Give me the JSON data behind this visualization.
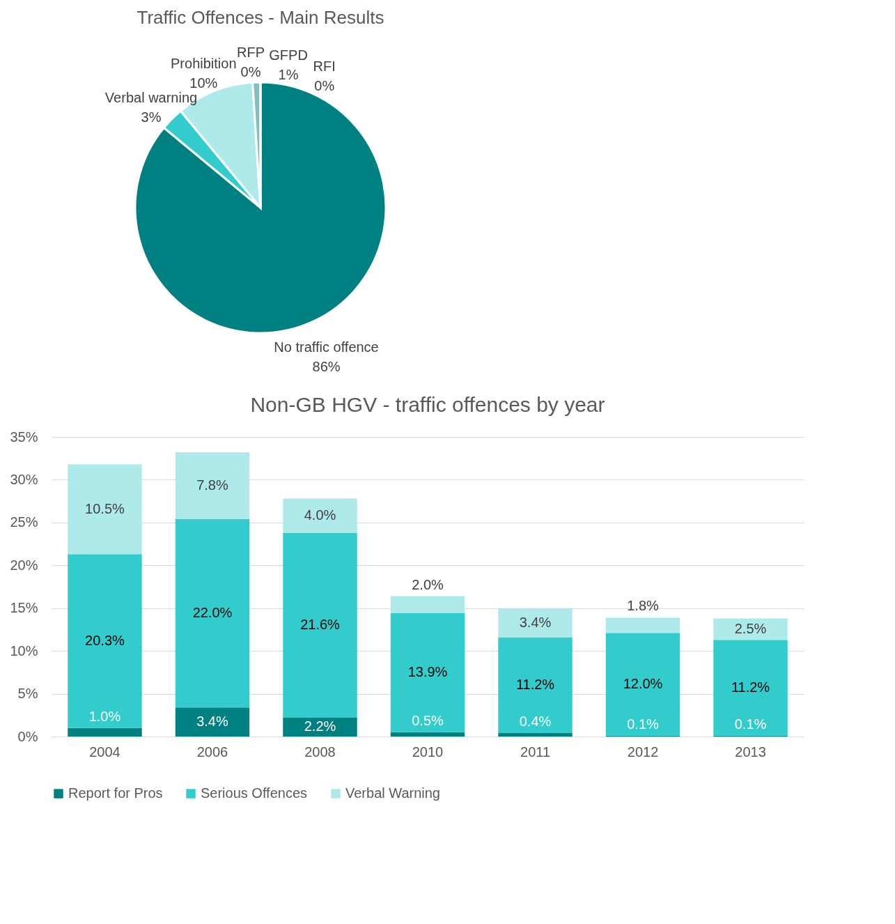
{
  "chart_data": [
    {
      "type": "pie",
      "title": "Traffic Offences - Main Results",
      "categories": [
        "No traffic offence",
        "Verbal warning",
        "Prohibition",
        "RFP",
        "GFPD",
        "RFI"
      ],
      "values": [
        86,
        3,
        10,
        0,
        1,
        0
      ],
      "colors": [
        "#008080",
        "#33cccc",
        "#aeeaea",
        "#ffffff",
        "#7fbfbf",
        "#008080"
      ],
      "value_labels": [
        "86%",
        "3%",
        "10%",
        "0%",
        "1%",
        "0%"
      ]
    },
    {
      "type": "bar",
      "title": "Non-GB HGV  - traffic offences by year",
      "stacked": true,
      "categories": [
        "2004",
        "2006",
        "2008",
        "2010",
        "2011",
        "2012",
        "2013"
      ],
      "series": [
        {
          "name": "Report for Pros",
          "color": "#008080",
          "values": [
            1.0,
            3.4,
            2.2,
            0.5,
            0.4,
            0.1,
            0.1
          ],
          "value_labels": [
            "1.0%",
            "3.4%",
            "2.2%",
            "0.5%",
            "0.4%",
            "0.1%",
            "0.1%"
          ]
        },
        {
          "name": "Serious Offences",
          "color": "#33cccc",
          "values": [
            20.3,
            22.0,
            21.6,
            13.9,
            11.2,
            12.0,
            11.2
          ],
          "value_labels": [
            "20.3%",
            "22.0%",
            "21.6%",
            "13.9%",
            "11.2%",
            "12.0%",
            "11.2%"
          ]
        },
        {
          "name": "Verbal Warning",
          "color": "#aeeaea",
          "values": [
            10.5,
            7.8,
            4.0,
            2.0,
            3.4,
            1.8,
            2.5
          ],
          "value_labels": [
            "10.5%",
            "7.8%",
            "4.0%",
            "2.0%",
            "3.4%",
            "1.8%",
            "2.5%"
          ]
        }
      ],
      "ylim": [
        0,
        35
      ],
      "yticks": [
        {
          "value": 0,
          "label": "0%"
        },
        {
          "value": 5,
          "label": "5%"
        },
        {
          "value": 10,
          "label": "10%"
        },
        {
          "value": 15,
          "label": "15%"
        },
        {
          "value": 20,
          "label": "20%"
        },
        {
          "value": 25,
          "label": "25%"
        },
        {
          "value": 30,
          "label": "30%"
        },
        {
          "value": 35,
          "label": "35%"
        }
      ],
      "grid": "y",
      "legend": "bottom"
    }
  ]
}
